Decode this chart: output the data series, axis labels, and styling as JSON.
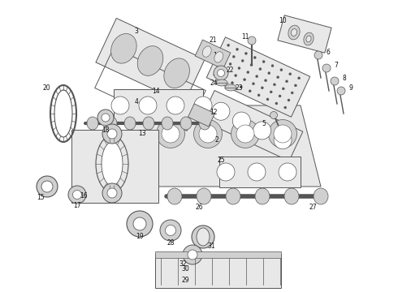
{
  "bg_color": "#ffffff",
  "lc": "#555555",
  "fc_light": "#e8e8e8",
  "fc_mid": "#d0d0d0",
  "fc_dark": "#b8b8b8",
  "label_fs": 5.5,
  "label_color": "#111111",
  "fig_w": 4.9,
  "fig_h": 3.6,
  "dpi": 100
}
